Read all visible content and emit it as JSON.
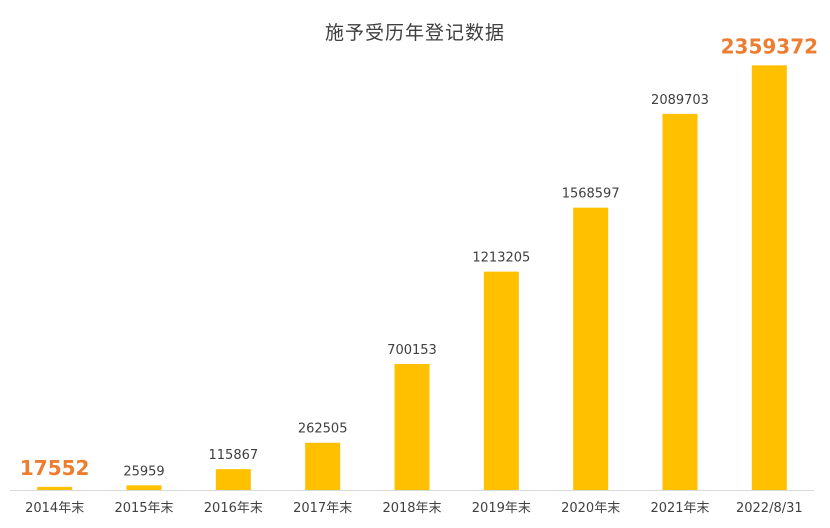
{
  "chart_data": {
    "type": "bar",
    "title": "施予受历年登记数据",
    "xlabel": "",
    "ylabel": "",
    "categories": [
      "2014年末",
      "2015年末",
      "2016年末",
      "2017年末",
      "2018年末",
      "2019年末",
      "2020年末",
      "2021年末",
      "2022/8/31"
    ],
    "values": [
      17552,
      25959,
      115867,
      262505,
      700153,
      1213205,
      1568597,
      2089703,
      2359372
    ],
    "highlighted_labels": [
      "17552",
      "2359372"
    ],
    "ylim": [
      0,
      2500000
    ],
    "grid": false,
    "legend": "none",
    "colors": {
      "bar": "#FFC000",
      "highlight_label": "#ED7D31",
      "label": "#404040"
    }
  }
}
